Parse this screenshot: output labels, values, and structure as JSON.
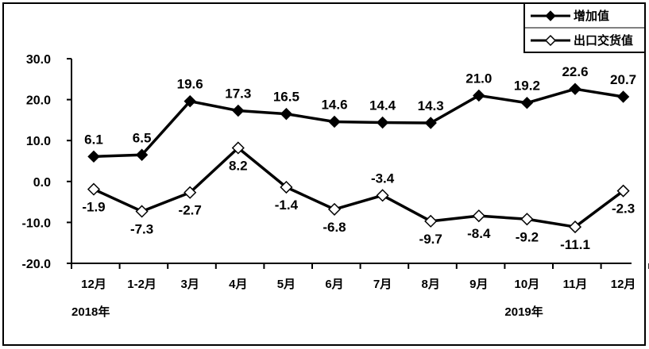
{
  "chart_data": {
    "type": "line",
    "categories": [
      "12月",
      "1-2月",
      "3月",
      "4月",
      "5月",
      "6月",
      "7月",
      "8月",
      "9月",
      "10月",
      "11月",
      "12月"
    ],
    "year_labels": [
      {
        "index": 0,
        "text": "2018年"
      },
      {
        "index": 9,
        "text": "2019年"
      }
    ],
    "series": [
      {
        "name": "增加值",
        "marker": "filled-diamond",
        "values": [
          6.1,
          6.5,
          19.6,
          17.3,
          16.5,
          14.6,
          14.4,
          14.3,
          21.0,
          19.2,
          22.6,
          20.7
        ],
        "labels": [
          "6.1",
          "6.5",
          "19.6",
          "17.3",
          "16.5",
          "14.6",
          "14.4",
          "14.3",
          "21.0",
          "19.2",
          "22.6",
          "20.7"
        ],
        "label_position": [
          "above",
          "above",
          "above",
          "above",
          "above",
          "above",
          "above",
          "above",
          "above",
          "above",
          "above",
          "above"
        ]
      },
      {
        "name": "出口交货值",
        "marker": "hollow-diamond",
        "values": [
          -1.9,
          -7.3,
          -2.7,
          8.2,
          -1.4,
          -6.8,
          -3.4,
          -9.7,
          -8.4,
          -9.2,
          -11.1,
          -2.3
        ],
        "labels": [
          "-1.9",
          "-7.3",
          "-2.7",
          "8.2",
          "-1.4",
          "-6.8",
          "-3.4",
          "-9.7",
          "-8.4",
          "-9.2",
          "-11.1",
          "-2.3"
        ],
        "label_position": [
          "below",
          "below",
          "below",
          "below",
          "below",
          "below",
          "above",
          "below",
          "below",
          "below",
          "below",
          "below"
        ]
      }
    ],
    "y_ticks": [
      "30.0",
      "20.0",
      "10.0",
      "0.0",
      "-10.0",
      "-20.0"
    ],
    "y_tick_values": [
      30,
      20,
      10,
      0,
      -10,
      -20
    ],
    "ylim": [
      -20,
      30
    ],
    "grid": false,
    "legend_position": "top-right"
  }
}
